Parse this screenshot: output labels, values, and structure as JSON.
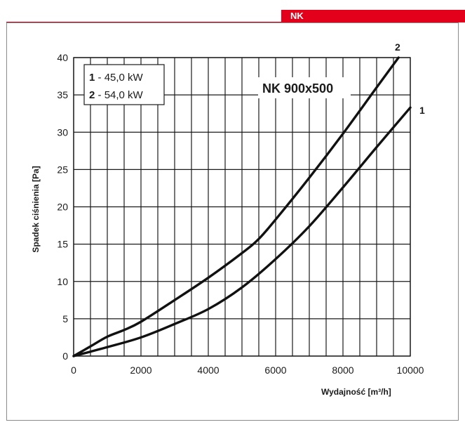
{
  "header": {
    "tab_label": "NK",
    "accent_color": "#e2001a"
  },
  "chart_data": {
    "type": "line",
    "title": "NK 900x500",
    "xlabel": "Wydajność [m³/h]",
    "ylabel": "Spadek ciśnienia [Pa]",
    "xlim": [
      0,
      10000
    ],
    "ylim": [
      0,
      40
    ],
    "x_ticks": [
      0,
      2000,
      4000,
      6000,
      8000,
      10000
    ],
    "y_ticks": [
      0,
      5,
      10,
      15,
      20,
      25,
      30,
      35,
      40
    ],
    "x_gridlines": [
      0,
      500,
      1000,
      1500,
      2000,
      2500,
      3000,
      3500,
      4000,
      4500,
      5000,
      5500,
      6000,
      6500,
      7000,
      7500,
      8000,
      8500,
      9000,
      9500,
      10000
    ],
    "y_gridlines": [
      0,
      5,
      10,
      15,
      20,
      25,
      30,
      35,
      40
    ],
    "grid": true,
    "legend": {
      "placement": "top-left",
      "entries": [
        {
          "num": "1",
          "text": "45,0 kW"
        },
        {
          "num": "2",
          "text": "54,0 kW"
        }
      ]
    },
    "series": [
      {
        "name": "1",
        "x": [
          0,
          1000,
          2000,
          3000,
          4000,
          5000,
          6000,
          7000,
          8000,
          9000,
          10000
        ],
        "y": [
          0,
          1.2,
          2.5,
          4.3,
          6.3,
          9.2,
          13.0,
          17.4,
          22.6,
          28.0,
          33.3
        ]
      },
      {
        "name": "2",
        "x": [
          0,
          500,
          1000,
          1500,
          2000,
          3000,
          4000,
          5000,
          5500,
          6000,
          7000,
          8000,
          9000,
          9650
        ],
        "y": [
          0,
          1.3,
          2.6,
          3.5,
          4.6,
          7.5,
          10.5,
          13.8,
          15.7,
          18.3,
          23.9,
          29.8,
          36.0,
          40.0
        ]
      }
    ]
  }
}
